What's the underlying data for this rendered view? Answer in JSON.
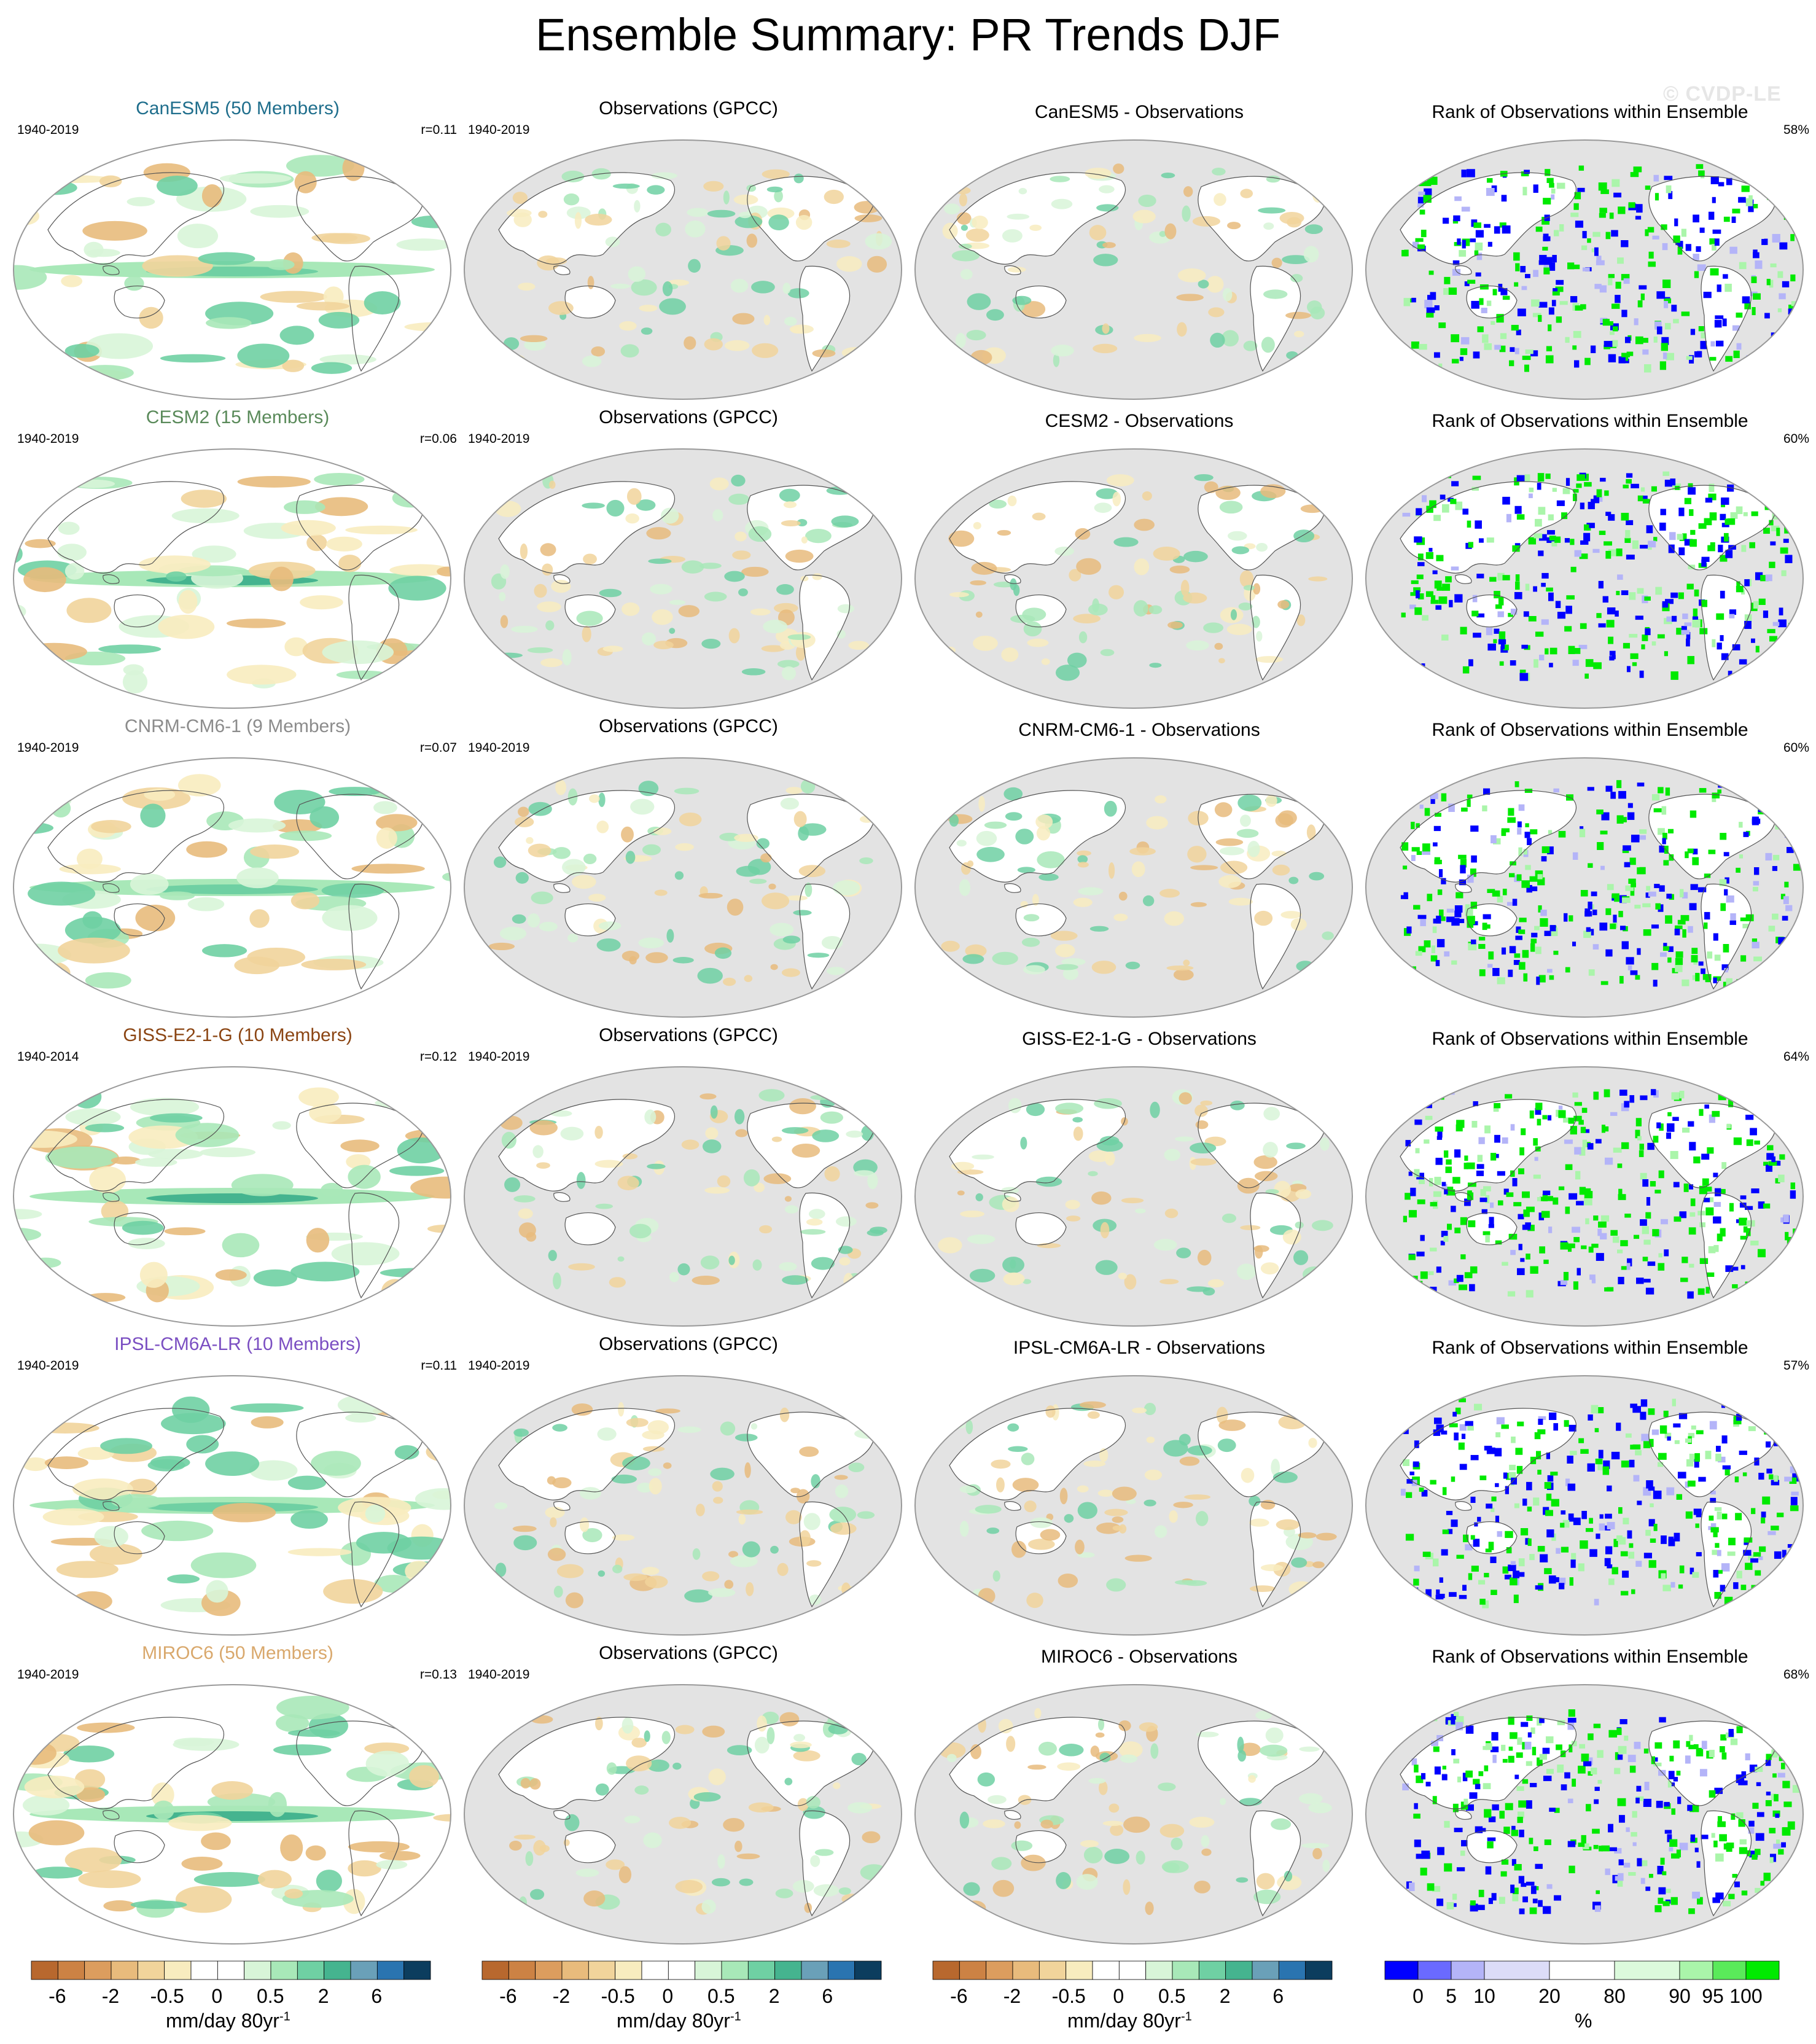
{
  "title": "Ensemble Summary: PR Trends DJF",
  "copyright": "© CVDP-LE",
  "rows": [
    {
      "model": "CanESM5 (50 Members)",
      "model_color": "#1f6e8c",
      "model_period": "1940-2019",
      "r": "r=0.11",
      "obs_title": "Observations (GPCC)",
      "obs_period": "1940-2019",
      "diff_title": "CanESM5 - Observations",
      "rank_title": "Rank of Observations within Ensemble",
      "rank_pct": "58%"
    },
    {
      "model": "CESM2 (15 Members)",
      "model_color": "#5a8a5a",
      "model_period": "1940-2019",
      "r": "r=0.06",
      "obs_title": "Observations (GPCC)",
      "obs_period": "1940-2019",
      "diff_title": "CESM2 - Observations",
      "rank_title": "Rank of Observations within Ensemble",
      "rank_pct": "60%"
    },
    {
      "model": "CNRM-CM6-1 (9 Members)",
      "model_color": "#8c8c8c",
      "model_period": "1940-2019",
      "r": "r=0.07",
      "obs_title": "Observations (GPCC)",
      "obs_period": "1940-2019",
      "diff_title": "CNRM-CM6-1 - Observations",
      "rank_title": "Rank of Observations within Ensemble",
      "rank_pct": "60%"
    },
    {
      "model": "GISS-E2-1-G (10 Members)",
      "model_color": "#8b4513",
      "model_period": "1940-2014",
      "r": "r=0.12",
      "obs_title": "Observations (GPCC)",
      "obs_period": "1940-2019",
      "diff_title": "GISS-E2-1-G - Observations",
      "rank_title": "Rank of Observations within Ensemble",
      "rank_pct": "64%"
    },
    {
      "model": "IPSL-CM6A-LR (10 Members)",
      "model_color": "#7b4fc2",
      "model_period": "1940-2019",
      "r": "r=0.11",
      "obs_title": "Observations (GPCC)",
      "obs_period": "1940-2019",
      "diff_title": "IPSL-CM6A-LR - Observations",
      "rank_title": "Rank of Observations within Ensemble",
      "rank_pct": "57%"
    },
    {
      "model": "MIROC6 (50 Members)",
      "model_color": "#d9a86c",
      "model_period": "1940-2019",
      "r": "r=0.13",
      "obs_title": "Observations (GPCC)",
      "obs_period": "1940-2019",
      "diff_title": "MIROC6 - Observations",
      "rank_title": "Rank of Observations within Ensemble",
      "rank_pct": "68%"
    }
  ],
  "colorbars": {
    "trend": {
      "colors": [
        "#b8682e",
        "#cc8244",
        "#dc9d5e",
        "#e8bb7c",
        "#f1d49b",
        "#f8ecbf",
        "#ffffff",
        "#ffffff",
        "#d8f5d8",
        "#a8e8b8",
        "#6fd0a3",
        "#45b48f",
        "#6aa0b8",
        "#2a74b0",
        "#0c3d5e"
      ],
      "ticks": [
        "-6",
        "-2",
        "-0.5",
        "0",
        "0.5",
        "2",
        "6"
      ],
      "unit": "mm/day 80yr",
      "unit_sup": "-1"
    },
    "rank": {
      "colors": [
        "#0000ff",
        "#6a6aff",
        "#b4b4f8",
        "#dcdcf8",
        "#ffffff",
        "#dcfadc",
        "#aaf5aa",
        "#5aea5a",
        "#00ea00"
      ],
      "ticks": [
        "0",
        "5",
        "10",
        "20",
        "80",
        "90",
        "95",
        "100"
      ],
      "unit": "%"
    }
  },
  "map_colors": {
    "land_outline": "#555555",
    "ocean_gray": "#e3e3e3",
    "frame": "#999999"
  }
}
